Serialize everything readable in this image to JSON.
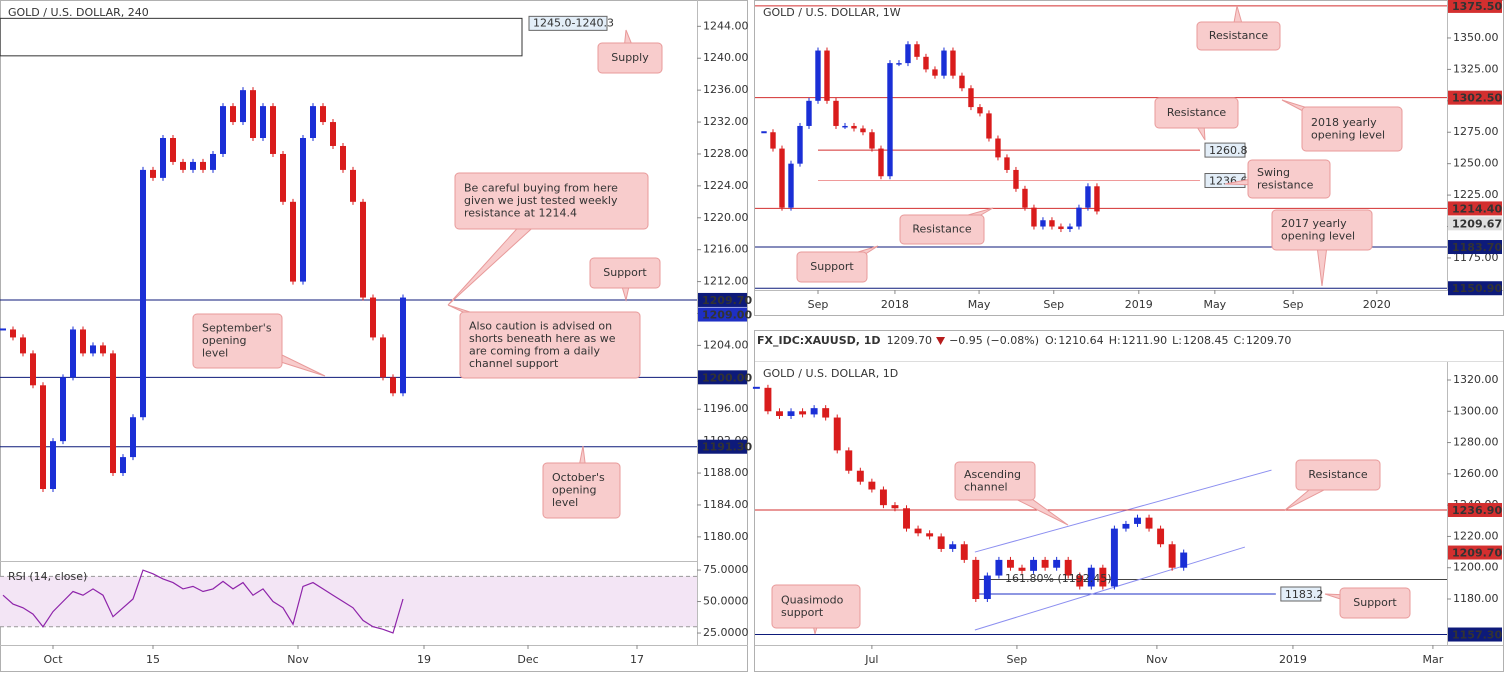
{
  "header": {
    "symbol": "FX_IDC:XAUUSD, 1D",
    "price": "1209.70",
    "change": "−0.95 (−0.08%)",
    "ohlc": [
      {
        "label": "O:",
        "value": "1210.64"
      },
      {
        "label": "H:",
        "value": "1211.90"
      },
      {
        "label": "L:",
        "value": "1208.45"
      },
      {
        "label": "C:",
        "value": "1209.70"
      }
    ]
  },
  "chart_data": [
    {
      "type": "candlestick",
      "title": "GOLD / U.S. DOLLAR, 240",
      "up_color": "#1a2fd6",
      "down_color": "#d91c1c",
      "x": [
        -5,
        -4,
        -3,
        -2,
        -1,
        0,
        1,
        2,
        3,
        4,
        5,
        6,
        7,
        8,
        9,
        10,
        11,
        12,
        13,
        14,
        15,
        16,
        17,
        18,
        19,
        20,
        21,
        22,
        23,
        24,
        25,
        26,
        27,
        28,
        29,
        30,
        31,
        32,
        33,
        34,
        35
      ],
      "values": [
        1206,
        1205,
        1203,
        1199,
        1186,
        1192,
        1200,
        1206,
        1203,
        1204,
        1203,
        1188,
        1190,
        1195,
        1226,
        1225,
        1230,
        1227,
        1226,
        1227,
        1226,
        1228,
        1234,
        1232,
        1236,
        1230,
        1234,
        1228,
        1222,
        1212,
        1230,
        1234,
        1232,
        1229,
        1226,
        1222,
        1210,
        1205,
        1200,
        1198,
        1210
      ],
      "xlim": [
        -5.3,
        64.4
      ],
      "ylim": [
        1177.1,
        1247.3
      ],
      "xticks": [
        {
          "value": 0,
          "label": "Oct"
        },
        {
          "value": 10,
          "label": "15"
        },
        {
          "value": 24.5,
          "label": "Nov"
        },
        {
          "value": 37.1,
          "label": "19"
        },
        {
          "value": 47.5,
          "label": "Dec"
        },
        {
          "value": 58.4,
          "label": "17"
        }
      ],
      "yticks": [
        {
          "value": 1180,
          "label": "1180.00"
        },
        {
          "value": 1184,
          "label": "1184.00"
        },
        {
          "value": 1188,
          "label": "1188.00"
        },
        {
          "value": 1192,
          "label": "1192.00"
        },
        {
          "value": 1196,
          "label": "1196.00"
        },
        {
          "value": 1200,
          "label": "1200.00"
        },
        {
          "value": 1204,
          "label": "1204.00"
        },
        {
          "value": 1208,
          "label": "1208.00"
        },
        {
          "value": 1212,
          "label": "1212.00"
        },
        {
          "value": 1216,
          "label": "1216.00"
        },
        {
          "value": 1220,
          "label": "1220.00"
        },
        {
          "value": 1224,
          "label": "1224.00"
        },
        {
          "value": 1228,
          "label": "1228.00"
        },
        {
          "value": 1232,
          "label": "1232.00"
        },
        {
          "value": 1236,
          "label": "1236.00"
        },
        {
          "value": 1240,
          "label": "1240.00"
        },
        {
          "value": 1244,
          "label": "1244.00"
        }
      ],
      "zone": {
        "values": [
          1245.0,
          1240.3
        ],
        "label": "1245.0-1240.3",
        "x": [
          -5.3,
          46.9
        ]
      },
      "levels": [
        {
          "value": 1209.7,
          "label": "1209.70",
          "color": "#0d1a7a",
          "line": true
        },
        {
          "value": 1209.0,
          "label": "1209.00",
          "color": "#1e2fc4",
          "line": false
        },
        {
          "value": 1200,
          "label": "1200.00",
          "color": "#0d1a7a",
          "line": true
        },
        {
          "value": 1191.3,
          "label": "1191.30",
          "color": "#0d1a7a",
          "line": true
        }
      ],
      "annotations": [
        {
          "text": [
            "Supply"
          ]
        },
        {
          "text": [
            "Be careful buying from here",
            "given we just tested weekly",
            "resistance at 1214.4"
          ]
        },
        {
          "text": [
            "Support"
          ]
        },
        {
          "text": [
            "September's",
            "opening",
            "level"
          ]
        },
        {
          "text": [
            "Also caution is advised on",
            "shorts beneath here as we",
            "are coming from a daily",
            "channel support"
          ]
        },
        {
          "text": [
            "October's",
            "opening",
            "level"
          ]
        }
      ]
    },
    {
      "type": "line",
      "title": "RSI (14, close)",
      "color": "#8e24aa",
      "x": [
        -5,
        -4,
        -3,
        -2,
        -1,
        0,
        1,
        2,
        3,
        4,
        5,
        6,
        7,
        8,
        9,
        10,
        11,
        12,
        13,
        14,
        15,
        16,
        17,
        18,
        19,
        20,
        21,
        22,
        23,
        24,
        25,
        26,
        27,
        28,
        29,
        30,
        31,
        32,
        33,
        34,
        35
      ],
      "values": [
        55,
        48,
        45,
        40,
        30,
        42,
        50,
        58,
        55,
        60,
        55,
        38,
        45,
        52,
        75,
        72,
        68,
        65,
        60,
        62,
        58,
        60,
        66,
        60,
        65,
        55,
        60,
        50,
        45,
        32,
        62,
        65,
        60,
        55,
        50,
        45,
        35,
        30,
        28,
        25,
        52
      ],
      "xlim": [
        -5.3,
        64.4
      ],
      "ylim": [
        15.5,
        80.6
      ],
      "bands": [
        30,
        70
      ],
      "band_color": "#f3e5f5",
      "yticks": [
        {
          "value": 25,
          "label": "25.0000"
        },
        {
          "value": 50,
          "label": "50.0000"
        },
        {
          "value": 75,
          "label": "75.0000"
        }
      ]
    },
    {
      "type": "candlestick",
      "title": "GOLD / U.S. DOLLAR, 1W",
      "up_color": "#1a2fd6",
      "down_color": "#d91c1c",
      "x": [
        -12,
        -10,
        -8,
        -6,
        -4,
        -2,
        0,
        2,
        4,
        6,
        8,
        10,
        12,
        14,
        16,
        18,
        20,
        22,
        24,
        26,
        28,
        30,
        32,
        34,
        36,
        38,
        40,
        42,
        44,
        46,
        48,
        50,
        52,
        54,
        56,
        58,
        60,
        62
      ],
      "values": [
        1275,
        1262,
        1215,
        1250,
        1280,
        1300,
        1340,
        1300,
        1280,
        1280,
        1278,
        1275,
        1262,
        1240,
        1330,
        1330,
        1345,
        1335,
        1325,
        1320,
        1340,
        1320,
        1310,
        1295,
        1290,
        1270,
        1255,
        1245,
        1230,
        1215,
        1200,
        1205,
        1200,
        1198,
        1200,
        1215,
        1232,
        1212
      ],
      "xlim": [
        -14,
        139.8
      ],
      "ylim": [
        1149.5,
        1380.2
      ],
      "xticks": [
        {
          "value": 0,
          "label": "Sep"
        },
        {
          "value": 17.1,
          "label": "2018"
        },
        {
          "value": 35.8,
          "label": "May"
        },
        {
          "value": 52.4,
          "label": "Sep"
        },
        {
          "value": 71.3,
          "label": "2019"
        },
        {
          "value": 88.2,
          "label": "May"
        },
        {
          "value": 105.6,
          "label": "Sep"
        },
        {
          "value": 124.2,
          "label": "2020"
        }
      ],
      "yticks": [
        {
          "value": 1175,
          "label": "1175.00"
        },
        {
          "value": 1200,
          "label": "1200.00"
        },
        {
          "value": 1225,
          "label": "1225.00"
        },
        {
          "value": 1250,
          "label": "1250.00"
        },
        {
          "value": 1275,
          "label": "1275.00"
        },
        {
          "value": 1300,
          "label": "1300.00"
        },
        {
          "value": 1325,
          "label": "1325.00"
        },
        {
          "value": 1350,
          "label": "1350.00"
        }
      ],
      "levels": [
        {
          "value": 1375.5,
          "label": "1375.50",
          "color": "#d32f2f",
          "line": true
        },
        {
          "value": 1302.5,
          "label": "1302.50",
          "color": "#d32f2f",
          "line": true
        },
        {
          "value": 1214.4,
          "label": "1214.40",
          "color": "#d32f2f",
          "line": true
        },
        {
          "value": 1209.67,
          "label": "1209.67",
          "color": "#e0e0e0",
          "line": false
        },
        {
          "value": 1183.7,
          "label": "1183.70",
          "color": "#0d1a7a",
          "line": true
        },
        {
          "value": 1150.9,
          "label": "1150.90",
          "color": "#0d1a7a",
          "line": true
        }
      ],
      "segments": [
        {
          "value": 1260.8,
          "label": "1260.8",
          "x": [
            0,
            84.9
          ],
          "color": "#d32f2f"
        },
        {
          "value": 1236.6,
          "label": "1236.6",
          "x": [
            0,
            84.9
          ],
          "color": "#ef9a9a"
        }
      ],
      "annotations": [
        {
          "text": [
            "Resistance"
          ]
        },
        {
          "text": [
            "Resistance"
          ]
        },
        {
          "text": [
            "2018 yearly",
            "opening level"
          ]
        },
        {
          "text": [
            "Swing",
            "resistance"
          ]
        },
        {
          "text": [
            "Resistance"
          ]
        },
        {
          "text": [
            "2017 yearly",
            "opening level"
          ]
        },
        {
          "text": [
            "Support"
          ]
        }
      ]
    },
    {
      "type": "candlestick",
      "title": "GOLD / U.S. DOLLAR, 1D",
      "up_color": "#1a2fd6",
      "down_color": "#d91c1c",
      "x": [
        -50,
        -45,
        -40,
        -35,
        -30,
        -25,
        -20,
        -15,
        -10,
        -5,
        0,
        5,
        10,
        15,
        20,
        25,
        30,
        35,
        40,
        45,
        50,
        55,
        60,
        65,
        70,
        75,
        80,
        85,
        90,
        95,
        100,
        105,
        110,
        115,
        120,
        125,
        130,
        135
      ],
      "values": [
        1315,
        1300,
        1297,
        1300,
        1298,
        1302,
        1296,
        1275,
        1262,
        1255,
        1250,
        1240,
        1238,
        1225,
        1222,
        1220,
        1212,
        1215,
        1205,
        1180,
        1195,
        1205,
        1200,
        1198,
        1205,
        1200,
        1205,
        1195,
        1188,
        1200,
        1188,
        1225,
        1228,
        1232,
        1225,
        1215,
        1200,
        1209.7
      ],
      "xlim": [
        -50.6,
        249.0
      ],
      "ylim": [
        1150.6,
        1331.5
      ],
      "xticks": [
        {
          "value": 0,
          "label": "Jul"
        },
        {
          "value": 62.8,
          "label": "Sep"
        },
        {
          "value": 123.4,
          "label": "Nov"
        },
        {
          "value": 182.3,
          "label": "2019"
        },
        {
          "value": 242.9,
          "label": "Mar"
        }
      ],
      "yticks": [
        {
          "value": 1180,
          "label": "1180.00"
        },
        {
          "value": 1200,
          "label": "1200.00"
        },
        {
          "value": 1220,
          "label": "1220.00"
        },
        {
          "value": 1240,
          "label": "1240.00"
        },
        {
          "value": 1260,
          "label": "1260.00"
        },
        {
          "value": 1280,
          "label": "1280.00"
        },
        {
          "value": 1300,
          "label": "1300.00"
        },
        {
          "value": 1320,
          "label": "1320.00"
        }
      ],
      "levels": [
        {
          "value": 1236.9,
          "label": "1236.90",
          "color": "#d32f2f",
          "line": true
        },
        {
          "value": 1209.7,
          "label": "1209.70",
          "color": "#d32f2f",
          "line": false
        },
        {
          "value": 1157.3,
          "label": "1157.30",
          "color": "#0d1a7a",
          "line": true
        }
      ],
      "segments": [
        {
          "value": 1192.45,
          "x": [
            44.6,
            249.0
          ],
          "color": "#444444"
        },
        {
          "value": 1183.2,
          "label": "1183.2",
          "x": [
            44.6,
            174.9
          ],
          "color": "#1e2fc4"
        }
      ],
      "lines": [
        {
          "x": [
            44.6,
            161.5
          ],
          "values": [
            1160.2,
            1213.2
          ],
          "color": "#8c8ff0"
        },
        {
          "x": [
            44.6,
            173.0
          ],
          "values": [
            1210.0,
            1262.4
          ],
          "color": "#8c8ff0"
        }
      ],
      "annotations": [
        {
          "text": [
            "Ascending",
            "channel"
          ]
        },
        {
          "text": [
            "Resistance"
          ]
        },
        {
          "text": [
            "Quasimodo",
            "support"
          ]
        },
        {
          "text": [
            "Support"
          ]
        },
        {
          "text": [
            "161.80% (1192.45)"
          ]
        }
      ]
    }
  ]
}
